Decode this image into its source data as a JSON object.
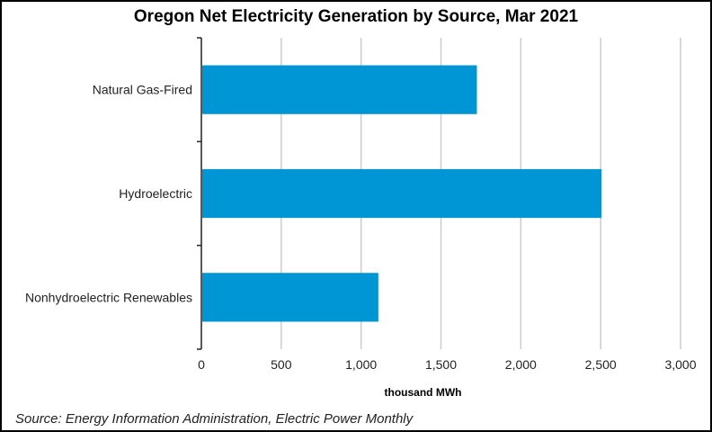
{
  "chart_data": {
    "type": "bar",
    "orientation": "horizontal",
    "title": "Oregon Net Electricity Generation by Source, Mar 2021",
    "categories": [
      "Natural Gas-Fired",
      "Hydroelectric",
      "Nonhydroelectric Renewables"
    ],
    "values": [
      1725,
      2505,
      1108
    ],
    "xlabel": "thousand MWh",
    "ylabel": "",
    "xlim": [
      0,
      3000
    ],
    "xticks": [
      "0",
      "500",
      "1,000",
      "1,500",
      "2,000",
      "2,500",
      "3,000"
    ],
    "grid": true,
    "bar_color": "#0096d6",
    "source": "Source: Energy Information Administration, Electric Power Monthly"
  }
}
